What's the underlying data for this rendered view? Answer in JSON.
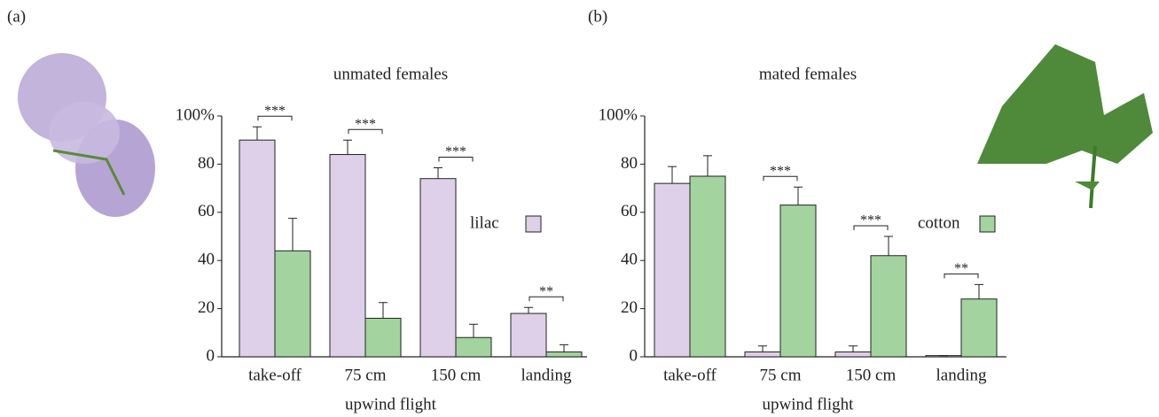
{
  "chart_data": [
    {
      "type": "bar",
      "panel": "(a)",
      "title": "unmated females",
      "xlabel": "upwind flight",
      "categories": [
        "take-off",
        "75 cm",
        "150 cm",
        "landing"
      ],
      "series": [
        {
          "name": "lilac",
          "color": "#ddd0e8",
          "values": [
            90,
            84,
            74,
            18
          ],
          "errors": [
            5.5,
            6,
            4.5,
            2.5
          ]
        },
        {
          "color": "#a3d49f",
          "values": [
            44,
            16,
            8,
            2
          ],
          "errors": [
            13.5,
            6.5,
            5.5,
            3
          ]
        }
      ],
      "significance": [
        "***",
        "***",
        "***",
        "**"
      ],
      "ylim": [
        0,
        100
      ],
      "yticks": [
        0,
        20,
        40,
        60,
        80,
        {
          "value": 100,
          "label": "100%"
        }
      ]
    },
    {
      "type": "bar",
      "panel": "(b)",
      "title": "mated females",
      "xlabel": "upwind flight",
      "categories": [
        "take-off",
        "75 cm",
        "150 cm",
        "landing"
      ],
      "series": [
        {
          "color": "#ddd0e8",
          "values": [
            72,
            2,
            2,
            0.5
          ],
          "errors": [
            7,
            2.5,
            2.5,
            0
          ]
        },
        {
          "name": "cotton",
          "color": "#a3d49f",
          "values": [
            75,
            63,
            42,
            24
          ],
          "errors": [
            8.5,
            7.5,
            8,
            6
          ]
        }
      ],
      "significance": [
        null,
        "***",
        "***",
        "**"
      ],
      "ylim": [
        0,
        100
      ],
      "yticks": [
        0,
        20,
        40,
        60,
        80,
        {
          "value": 100,
          "label": "100%"
        }
      ]
    }
  ]
}
